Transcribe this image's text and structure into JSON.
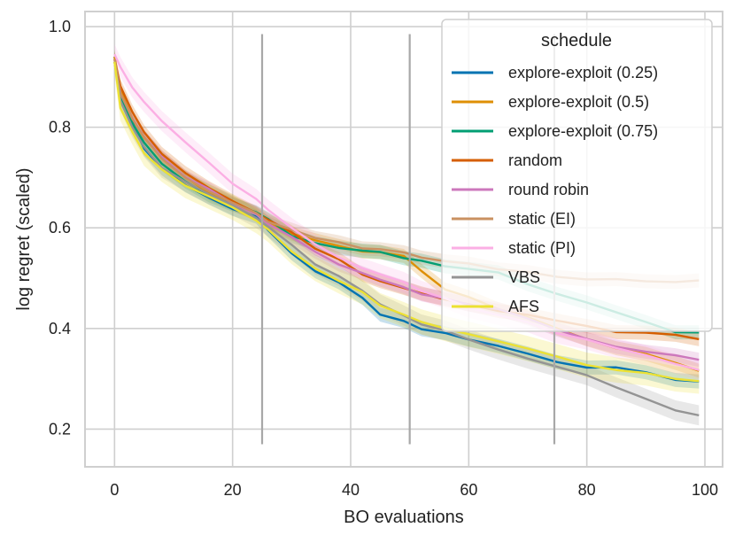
{
  "chart_data": {
    "type": "line",
    "xlabel": "BO evaluations",
    "ylabel": "log regret (scaled)",
    "xlim": [
      -5,
      103
    ],
    "ylim": [
      0.125,
      1.03
    ],
    "xticks": [
      0,
      20,
      40,
      60,
      80,
      100
    ],
    "yticks": [
      0.2,
      0.4,
      0.6,
      0.8,
      1.0
    ],
    "xtick_labels": [
      "0",
      "20",
      "40",
      "60",
      "80",
      "100"
    ],
    "ytick_labels": [
      "0.2",
      "0.4",
      "0.6",
      "0.8",
      "1.0"
    ],
    "grid": true,
    "legend_title": "schedule",
    "legend_position": "top-right",
    "vlines": [
      {
        "x": 25,
        "ymin": 0.17,
        "ymax": 0.985
      },
      {
        "x": 50,
        "ymin": 0.17,
        "ymax": 0.985
      },
      {
        "x": 74.5,
        "ymin": 0.17,
        "ymax": 0.985
      }
    ],
    "x": [
      0,
      1,
      3,
      5,
      8,
      12,
      16,
      20,
      24,
      26,
      30,
      34,
      38,
      42,
      45,
      49,
      52,
      56,
      60,
      65,
      70,
      75,
      80,
      85,
      90,
      95,
      99
    ],
    "series": [
      {
        "name": "explore-exploit (0.25)",
        "color": "#0173b2",
        "band": 0.014,
        "values": [
          0.94,
          0.86,
          0.81,
          0.76,
          0.72,
          0.685,
          0.66,
          0.64,
          0.62,
          0.595,
          0.55,
          0.515,
          0.49,
          0.46,
          0.43,
          0.415,
          0.4,
          0.39,
          0.38,
          0.365,
          0.35,
          0.335,
          0.325,
          0.32,
          0.31,
          0.3,
          0.295
        ]
      },
      {
        "name": "explore-exploit (0.5)",
        "color": "#de8f05",
        "band": 0.014,
        "values": [
          0.94,
          0.87,
          0.82,
          0.78,
          0.74,
          0.7,
          0.67,
          0.65,
          0.625,
          0.61,
          0.59,
          0.575,
          0.565,
          0.555,
          0.55,
          0.545,
          0.515,
          0.48,
          0.46,
          0.44,
          0.42,
          0.4,
          0.38,
          0.36,
          0.35,
          0.33,
          0.315
        ]
      },
      {
        "name": "explore-exploit (0.75)",
        "color": "#029e73",
        "band": 0.014,
        "values": [
          0.93,
          0.86,
          0.81,
          0.77,
          0.73,
          0.695,
          0.665,
          0.645,
          0.63,
          0.615,
          0.585,
          0.57,
          0.56,
          0.555,
          0.55,
          0.54,
          0.535,
          0.525,
          0.52,
          0.51,
          0.49,
          0.47,
          0.45,
          0.43,
          0.41,
          0.39,
          0.39
        ]
      },
      {
        "name": "random",
        "color": "#d55e00",
        "band": 0.014,
        "values": [
          0.935,
          0.88,
          0.83,
          0.79,
          0.75,
          0.71,
          0.68,
          0.655,
          0.63,
          0.615,
          0.59,
          0.56,
          0.535,
          0.51,
          0.495,
          0.48,
          0.47,
          0.46,
          0.445,
          0.435,
          0.425,
          0.415,
          0.405,
          0.395,
          0.39,
          0.385,
          0.38
        ]
      },
      {
        "name": "round robin",
        "color": "#cc78bc",
        "band": 0.014,
        "values": [
          0.935,
          0.87,
          0.82,
          0.78,
          0.74,
          0.7,
          0.675,
          0.65,
          0.625,
          0.61,
          0.585,
          0.555,
          0.53,
          0.51,
          0.495,
          0.48,
          0.47,
          0.46,
          0.45,
          0.44,
          0.42,
          0.4,
          0.38,
          0.365,
          0.355,
          0.345,
          0.34
        ]
      },
      {
        "name": "static (EI)",
        "color": "#ca9161",
        "band": 0.014,
        "values": [
          0.935,
          0.87,
          0.82,
          0.78,
          0.74,
          0.7,
          0.675,
          0.65,
          0.63,
          0.615,
          0.595,
          0.58,
          0.57,
          0.56,
          0.555,
          0.55,
          0.54,
          0.535,
          0.53,
          0.52,
          0.51,
          0.505,
          0.5,
          0.5,
          0.495,
          0.495,
          0.495
        ]
      },
      {
        "name": "static (PI)",
        "color": "#fbafe4",
        "band": 0.02,
        "values": [
          0.945,
          0.92,
          0.88,
          0.85,
          0.81,
          0.77,
          0.73,
          0.69,
          0.655,
          0.635,
          0.6,
          0.565,
          0.54,
          0.52,
          0.505,
          0.49,
          0.475,
          0.46,
          0.44,
          0.425,
          0.41,
          0.39,
          0.375,
          0.36,
          0.345,
          0.33,
          0.32
        ]
      },
      {
        "name": "VBS",
        "color": "#949494",
        "band": 0.02,
        "values": [
          0.93,
          0.85,
          0.8,
          0.76,
          0.72,
          0.69,
          0.665,
          0.645,
          0.62,
          0.6,
          0.565,
          0.53,
          0.505,
          0.475,
          0.445,
          0.425,
          0.41,
          0.395,
          0.38,
          0.36,
          0.34,
          0.325,
          0.31,
          0.28,
          0.26,
          0.24,
          0.228
        ]
      },
      {
        "name": "AFS",
        "color": "#ece133",
        "band": 0.025,
        "values": [
          0.93,
          0.84,
          0.79,
          0.75,
          0.715,
          0.685,
          0.66,
          0.64,
          0.615,
          0.595,
          0.555,
          0.52,
          0.495,
          0.47,
          0.445,
          0.43,
          0.415,
          0.4,
          0.39,
          0.375,
          0.36,
          0.345,
          0.33,
          0.32,
          0.31,
          0.3,
          0.295
        ]
      }
    ]
  }
}
